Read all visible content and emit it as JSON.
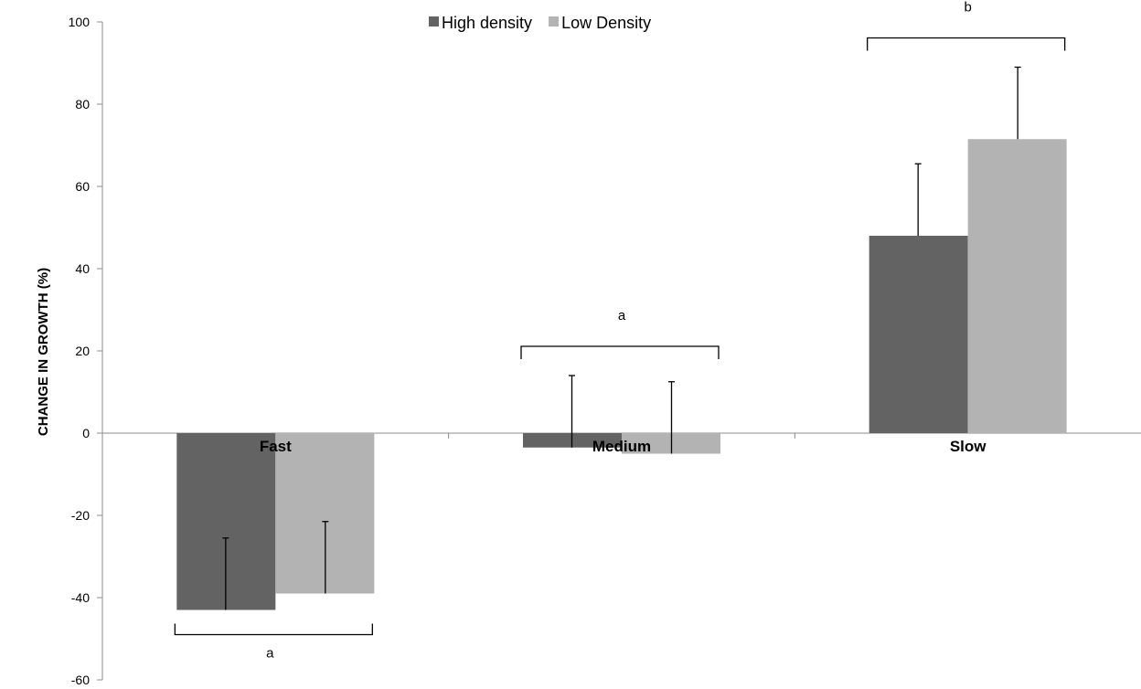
{
  "chart_data": {
    "type": "bar",
    "categories": [
      "Fast",
      "Medium",
      "Slow"
    ],
    "series": [
      {
        "name": "High density",
        "values": [
          -43,
          -3.5,
          48
        ],
        "error": [
          17.5,
          17.5,
          17.5
        ],
        "color": "#636363"
      },
      {
        "name": "Low Density",
        "values": [
          -39,
          -5,
          71.5
        ],
        "error": [
          17.5,
          17.5,
          17.5
        ],
        "color": "#b3b3b3"
      }
    ],
    "title": "",
    "xlabel": "",
    "ylabel": "CHANGE IN GROWTH (%)",
    "ylim": [
      -60,
      100
    ],
    "yticks": [
      -60,
      -40,
      -20,
      0,
      20,
      40,
      60,
      80,
      100
    ],
    "grid": false,
    "legend_position": "top-center",
    "annotations": [
      {
        "category": "Fast",
        "label": "a",
        "placement": "below"
      },
      {
        "category": "Medium",
        "label": "a",
        "placement": "above"
      },
      {
        "category": "Slow",
        "label": "b",
        "placement": "above"
      }
    ]
  }
}
